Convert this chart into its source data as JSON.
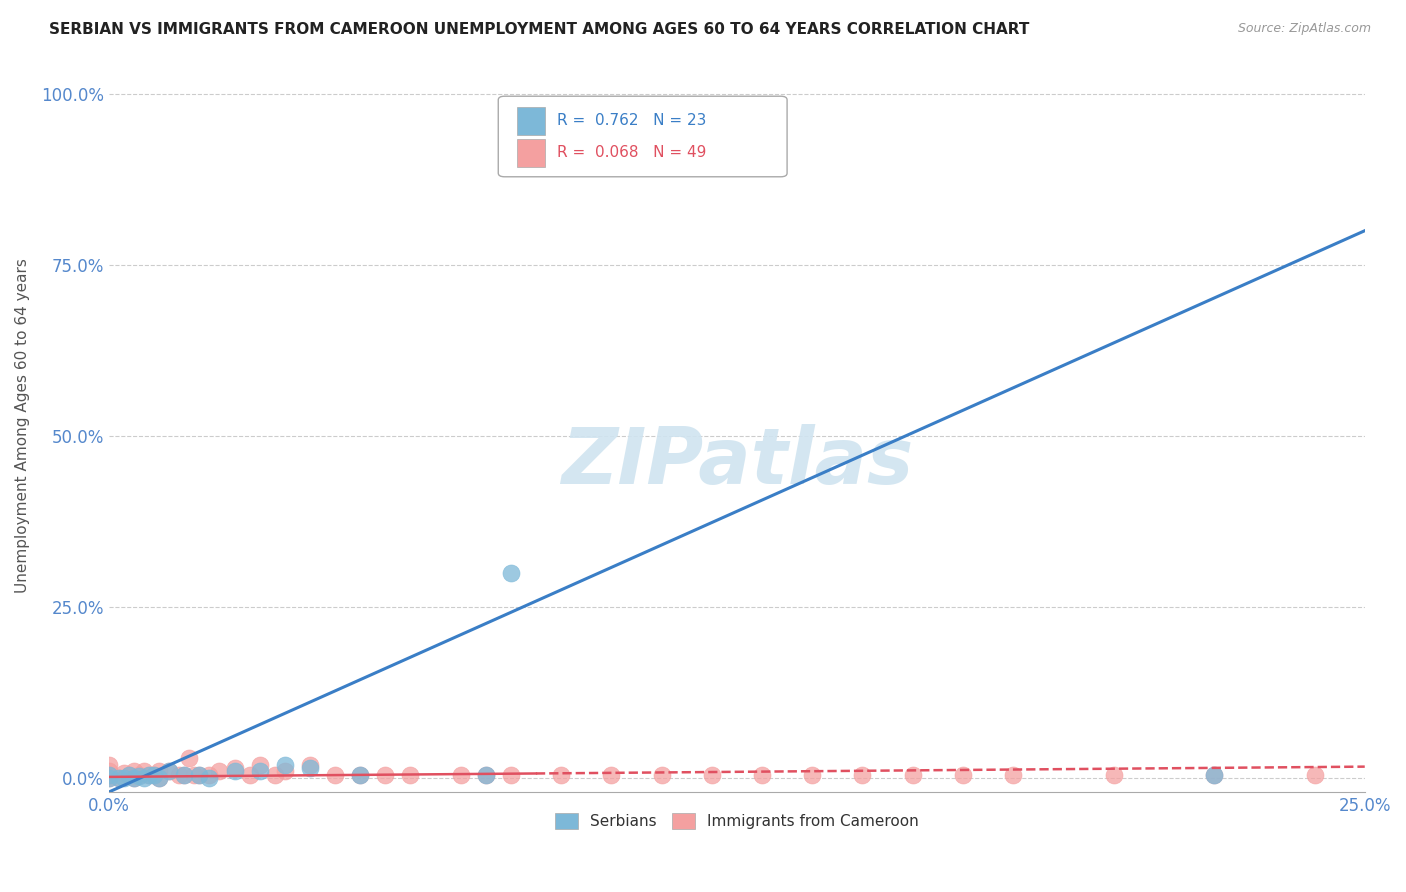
{
  "title": "SERBIAN VS IMMIGRANTS FROM CAMEROON UNEMPLOYMENT AMONG AGES 60 TO 64 YEARS CORRELATION CHART",
  "source": "Source: ZipAtlas.com",
  "xlim": [
    0,
    0.25
  ],
  "ylim": [
    -0.02,
    1.05
  ],
  "ylabel": "Unemployment Among Ages 60 to 64 years",
  "blue_R": "0.762",
  "blue_N": "23",
  "pink_R": "0.068",
  "pink_N": "49",
  "legend1_label": "Serbians",
  "legend2_label": "Immigrants from Cameroon",
  "watermark": "ZIPatlas",
  "blue_scatter_x": [
    0.0,
    0.0,
    0.002,
    0.003,
    0.004,
    0.005,
    0.006,
    0.007,
    0.008,
    0.009,
    0.01,
    0.012,
    0.015,
    0.018,
    0.02,
    0.025,
    0.03,
    0.035,
    0.04,
    0.05,
    0.075,
    0.08,
    0.22
  ],
  "blue_scatter_y": [
    0.0,
    0.005,
    0.0,
    0.0,
    0.005,
    0.0,
    0.003,
    0.0,
    0.005,
    0.005,
    0.0,
    0.01,
    0.005,
    0.005,
    0.0,
    0.01,
    0.01,
    0.02,
    0.015,
    0.005,
    0.005,
    0.3,
    0.005
  ],
  "pink_scatter_x": [
    0.0,
    0.0,
    0.0,
    0.0,
    0.002,
    0.003,
    0.004,
    0.005,
    0.005,
    0.006,
    0.007,
    0.008,
    0.009,
    0.01,
    0.01,
    0.012,
    0.014,
    0.015,
    0.016,
    0.017,
    0.018,
    0.02,
    0.022,
    0.025,
    0.028,
    0.03,
    0.033,
    0.035,
    0.04,
    0.045,
    0.05,
    0.055,
    0.06,
    0.07,
    0.075,
    0.08,
    0.09,
    0.1,
    0.11,
    0.12,
    0.13,
    0.14,
    0.15,
    0.16,
    0.17,
    0.18,
    0.2,
    0.22,
    0.24
  ],
  "pink_scatter_y": [
    0.0,
    0.005,
    0.01,
    0.02,
    0.0,
    0.008,
    0.005,
    0.0,
    0.01,
    0.005,
    0.01,
    0.005,
    0.005,
    0.0,
    0.01,
    0.01,
    0.005,
    0.005,
    0.03,
    0.005,
    0.005,
    0.005,
    0.01,
    0.015,
    0.005,
    0.02,
    0.005,
    0.01,
    0.02,
    0.005,
    0.005,
    0.005,
    0.005,
    0.005,
    0.005,
    0.005,
    0.005,
    0.005,
    0.005,
    0.005,
    0.005,
    0.005,
    0.005,
    0.005,
    0.005,
    0.005,
    0.005,
    0.005,
    0.005
  ],
  "blue_line_x0": 0.0,
  "blue_line_y0": -0.02,
  "blue_line_x1": 0.25,
  "blue_line_y1": 0.8,
  "pink_line_solid_x0": 0.0,
  "pink_line_solid_y0": 0.002,
  "pink_line_solid_x1": 0.085,
  "pink_line_solid_y1": 0.007,
  "pink_line_dash_x0": 0.085,
  "pink_line_dash_y0": 0.007,
  "pink_line_dash_x1": 0.25,
  "pink_line_dash_y1": 0.017,
  "blue_color": "#7db8d8",
  "pink_color": "#f4a0a0",
  "blue_line_color": "#3a7ec6",
  "pink_line_color": "#e05060",
  "grid_color": "#cccccc",
  "bg_color": "#ffffff",
  "tick_color": "#5588cc",
  "ytick_vals": [
    0.0,
    0.25,
    0.5,
    0.75,
    1.0
  ],
  "ytick_labels": [
    "0.0%",
    "25.0%",
    "50.0%",
    "75.0%",
    "100.0%"
  ],
  "xtick_vals": [
    0.0,
    0.25
  ],
  "xtick_labels": [
    "0.0%",
    "25.0%"
  ]
}
